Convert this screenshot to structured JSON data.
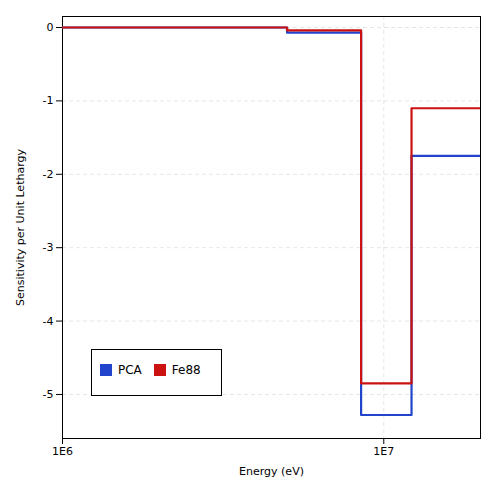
{
  "chart_data": {
    "type": "line",
    "xlabel": "Energy (eV)",
    "ylabel": "Sensitivity per Unit Lethargy",
    "log": "x",
    "xlim": [
      1000000,
      20000000
    ],
    "xticks": [
      {
        "value": 1000000,
        "label": "1E6"
      },
      {
        "value": 10000000,
        "label": "1E7"
      }
    ],
    "ylim": [
      -5.6,
      0.15
    ],
    "yticks": [
      0,
      -1,
      -2,
      -3,
      -4,
      -5
    ],
    "grid": true,
    "legend": "lower left",
    "x": [
      1000000,
      5000000,
      5000000,
      8500000,
      8500000,
      12200000,
      12200000,
      20000000
    ],
    "series": [
      {
        "name": "PCA",
        "color": "#2244cc",
        "values": [
          0.0,
          0.0,
          -0.07,
          -0.07,
          -5.28,
          -5.28,
          -1.75,
          -1.75
        ]
      },
      {
        "name": "Fe88",
        "color": "#cc1111",
        "values": [
          0.0,
          0.0,
          -0.04,
          -0.04,
          -4.85,
          -4.85,
          -1.1,
          -1.1
        ]
      }
    ]
  }
}
